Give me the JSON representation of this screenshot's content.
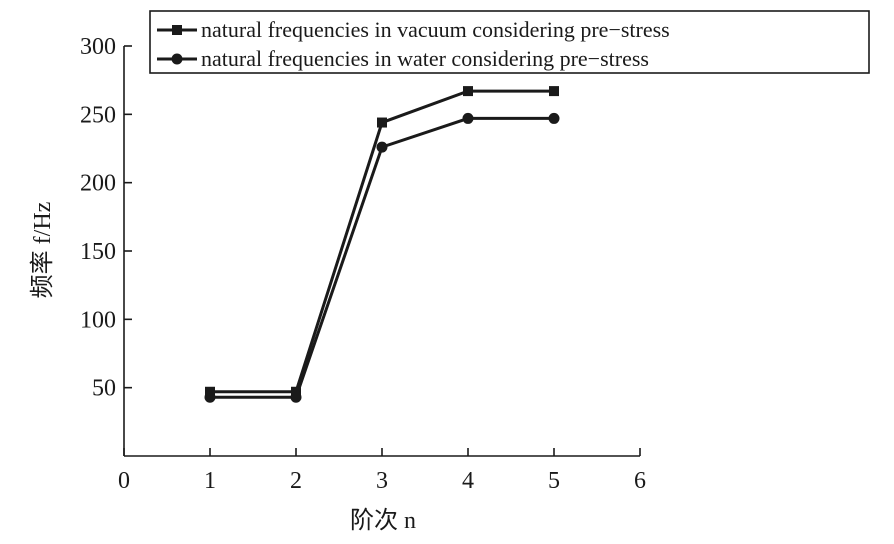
{
  "chart_data": {
    "type": "line",
    "xlabel": "阶次 n",
    "ylabel": "频率 f/Hz",
    "xlim": [
      0,
      6
    ],
    "ylim": [
      0,
      300
    ],
    "x_ticks": [
      0,
      1,
      2,
      3,
      4,
      5,
      6
    ],
    "y_ticks": [
      50,
      100,
      150,
      200,
      250,
      300
    ],
    "x": [
      1,
      2,
      3,
      4,
      5
    ],
    "series": [
      {
        "name": "natural frequencies in vacuum considering pre−stress",
        "marker": "square",
        "values": [
          47,
          47,
          244,
          267,
          267
        ]
      },
      {
        "name": "natural frequencies in water considering pre−stress",
        "marker": "circle",
        "values": [
          43,
          43,
          226,
          247,
          247
        ]
      }
    ],
    "legend": "top-right",
    "grid": false,
    "colors": {
      "line": "#1a1a1a",
      "background": "#ffffff"
    }
  }
}
